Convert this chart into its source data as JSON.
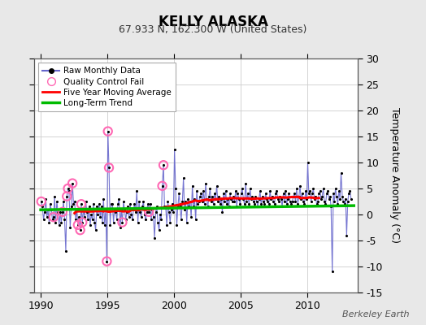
{
  "title": "KELLY ALASKA",
  "subtitle": "67.933 N, 162.300 W (United States)",
  "ylabel_right": "Temperature Anomaly (°C)",
  "attribution": "Berkeley Earth",
  "xlim": [
    1989.5,
    2013.8
  ],
  "ylim": [
    -15,
    30
  ],
  "yticks": [
    -15,
    -10,
    -5,
    0,
    5,
    10,
    15,
    20,
    25,
    30
  ],
  "xticks": [
    1990,
    1995,
    2000,
    2005,
    2010
  ],
  "bg_color": "#e8e8e8",
  "plot_bg_color": "#ffffff",
  "raw_color": "#6666cc",
  "raw_dot_color": "#000000",
  "qc_color": "#ff69b4",
  "ma_color": "#ff0000",
  "trend_color": "#00bb00",
  "grid_color": "#cccccc",
  "raw_data_times": [
    1990.04,
    1990.12,
    1990.21,
    1990.29,
    1990.38,
    1990.46,
    1990.54,
    1990.63,
    1990.71,
    1990.79,
    1990.88,
    1990.96,
    1991.04,
    1991.12,
    1991.21,
    1991.29,
    1991.38,
    1991.46,
    1991.54,
    1991.63,
    1991.71,
    1991.79,
    1991.88,
    1991.96,
    1992.04,
    1992.12,
    1992.21,
    1992.29,
    1992.38,
    1992.46,
    1992.54,
    1992.63,
    1992.71,
    1992.79,
    1992.88,
    1992.96,
    1993.04,
    1993.12,
    1993.21,
    1993.29,
    1993.38,
    1993.46,
    1993.54,
    1993.63,
    1993.71,
    1993.79,
    1993.88,
    1993.96,
    1994.04,
    1994.12,
    1994.21,
    1994.29,
    1994.38,
    1994.46,
    1994.54,
    1994.63,
    1994.71,
    1994.79,
    1994.88,
    1994.96,
    1995.04,
    1995.12,
    1995.21,
    1995.29,
    1995.38,
    1995.46,
    1995.54,
    1995.63,
    1995.71,
    1995.79,
    1995.88,
    1995.96,
    1996.04,
    1996.12,
    1996.21,
    1996.29,
    1996.38,
    1996.46,
    1996.54,
    1996.63,
    1996.71,
    1996.79,
    1996.88,
    1996.96,
    1997.04,
    1997.12,
    1997.21,
    1997.29,
    1997.38,
    1997.46,
    1997.54,
    1997.63,
    1997.71,
    1997.79,
    1997.88,
    1997.96,
    1998.04,
    1998.12,
    1998.21,
    1998.29,
    1998.38,
    1998.46,
    1998.54,
    1998.63,
    1998.71,
    1998.79,
    1998.88,
    1998.96,
    1999.04,
    1999.12,
    1999.21,
    1999.29,
    1999.38,
    1999.46,
    1999.54,
    1999.63,
    1999.71,
    1999.79,
    1999.88,
    1999.96,
    2000.04,
    2000.12,
    2000.21,
    2000.29,
    2000.38,
    2000.46,
    2000.54,
    2000.63,
    2000.71,
    2000.79,
    2000.88,
    2000.96,
    2001.04,
    2001.12,
    2001.21,
    2001.29,
    2001.38,
    2001.46,
    2001.54,
    2001.63,
    2001.71,
    2001.79,
    2001.88,
    2001.96,
    2002.04,
    2002.12,
    2002.21,
    2002.29,
    2002.38,
    2002.46,
    2002.54,
    2002.63,
    2002.71,
    2002.79,
    2002.88,
    2002.96,
    2003.04,
    2003.12,
    2003.21,
    2003.29,
    2003.38,
    2003.46,
    2003.54,
    2003.63,
    2003.71,
    2003.79,
    2003.88,
    2003.96,
    2004.04,
    2004.12,
    2004.21,
    2004.29,
    2004.38,
    2004.46,
    2004.54,
    2004.63,
    2004.71,
    2004.79,
    2004.88,
    2004.96,
    2005.04,
    2005.12,
    2005.21,
    2005.29,
    2005.38,
    2005.46,
    2005.54,
    2005.63,
    2005.71,
    2005.79,
    2005.88,
    2005.96,
    2006.04,
    2006.12,
    2006.21,
    2006.29,
    2006.38,
    2006.46,
    2006.54,
    2006.63,
    2006.71,
    2006.79,
    2006.88,
    2006.96,
    2007.04,
    2007.12,
    2007.21,
    2007.29,
    2007.38,
    2007.46,
    2007.54,
    2007.63,
    2007.71,
    2007.79,
    2007.88,
    2007.96,
    2008.04,
    2008.12,
    2008.21,
    2008.29,
    2008.38,
    2008.46,
    2008.54,
    2008.63,
    2008.71,
    2008.79,
    2008.88,
    2008.96,
    2009.04,
    2009.12,
    2009.21,
    2009.29,
    2009.38,
    2009.46,
    2009.54,
    2009.63,
    2009.71,
    2009.79,
    2009.88,
    2009.96,
    2010.04,
    2010.12,
    2010.21,
    2010.29,
    2010.38,
    2010.46,
    2010.54,
    2010.63,
    2010.71,
    2010.79,
    2010.88,
    2010.96,
    2011.04,
    2011.12,
    2011.21,
    2011.29,
    2011.38,
    2011.46,
    2011.54,
    2011.63,
    2011.71,
    2011.79,
    2011.88,
    2011.96,
    2012.04,
    2012.12,
    2012.21,
    2012.29,
    2012.38,
    2012.46,
    2012.54,
    2012.63,
    2012.71,
    2012.79,
    2012.88,
    2012.96,
    2013.04,
    2013.12,
    2013.21,
    2013.29
  ],
  "raw_data_values": [
    2.5,
    1.5,
    -1.0,
    0.5,
    3.0,
    -0.5,
    1.0,
    -1.5,
    2.0,
    1.0,
    -1.0,
    -0.5,
    3.5,
    -1.5,
    2.5,
    0.5,
    -2.0,
    0.5,
    -1.5,
    0.5,
    2.5,
    -1.0,
    -7.0,
    3.5,
    5.0,
    4.5,
    -2.5,
    1.5,
    6.0,
    2.0,
    2.5,
    -1.0,
    1.0,
    -2.0,
    -0.5,
    -3.0,
    2.0,
    -1.5,
    1.0,
    -0.5,
    2.5,
    0.5,
    -1.0,
    1.5,
    -2.0,
    0.0,
    -1.0,
    2.0,
    -1.5,
    -3.0,
    1.5,
    0.0,
    2.0,
    -0.5,
    1.5,
    -1.5,
    3.0,
    -2.0,
    1.0,
    -9.0,
    16.0,
    9.0,
    -2.0,
    2.0,
    2.0,
    -1.5,
    1.0,
    0.5,
    -1.0,
    2.0,
    3.0,
    -2.5,
    1.0,
    -1.5,
    2.5,
    1.0,
    -1.0,
    0.5,
    1.5,
    -0.5,
    2.0,
    0.0,
    -1.0,
    1.0,
    2.0,
    0.5,
    4.5,
    -1.5,
    2.5,
    0.5,
    -0.5,
    1.5,
    2.5,
    0.0,
    -1.0,
    0.5,
    2.0,
    0.5,
    2.0,
    -1.0,
    1.0,
    -0.5,
    -4.5,
    0.5,
    1.5,
    -1.5,
    -3.0,
    0.0,
    -1.0,
    5.5,
    9.5,
    1.5,
    1.5,
    -2.0,
    2.5,
    0.5,
    -1.5,
    1.0,
    2.0,
    0.5,
    12.5,
    5.0,
    -2.0,
    1.5,
    4.0,
    1.5,
    -1.0,
    2.5,
    7.0,
    1.0,
    2.5,
    -1.5,
    3.0,
    1.5,
    2.5,
    -0.5,
    5.5,
    1.5,
    3.0,
    -1.0,
    4.5,
    2.0,
    2.5,
    3.5,
    4.0,
    2.5,
    4.5,
    2.0,
    6.0,
    3.0,
    1.5,
    3.5,
    5.0,
    2.5,
    3.5,
    2.0,
    4.0,
    3.0,
    5.5,
    2.5,
    3.5,
    2.0,
    3.0,
    0.5,
    4.0,
    2.5,
    4.5,
    2.0,
    3.0,
    1.5,
    4.0,
    3.0,
    2.5,
    3.5,
    2.5,
    4.5,
    1.5,
    4.0,
    3.0,
    2.0,
    4.0,
    5.0,
    3.0,
    2.0,
    6.0,
    2.5,
    4.0,
    2.0,
    5.0,
    3.0,
    3.5,
    2.5,
    2.0,
    3.5,
    2.5,
    1.5,
    3.0,
    4.5,
    2.0,
    3.5,
    2.5,
    2.0,
    4.0,
    3.0,
    2.5,
    2.0,
    4.5,
    3.0,
    3.5,
    2.5,
    2.0,
    4.0,
    4.5,
    3.0,
    2.5,
    3.5,
    3.0,
    1.5,
    4.0,
    2.5,
    4.5,
    2.0,
    3.0,
    4.0,
    2.5,
    2.0,
    2.5,
    3.5,
    4.0,
    2.5,
    5.0,
    2.0,
    3.5,
    5.5,
    3.0,
    4.0,
    2.5,
    2.0,
    4.5,
    3.0,
    10.0,
    4.0,
    4.5,
    2.5,
    4.0,
    5.0,
    3.0,
    3.5,
    2.0,
    2.5,
    4.0,
    4.5,
    3.0,
    3.5,
    5.0,
    2.5,
    2.0,
    4.0,
    4.5,
    3.0,
    3.5,
    1.5,
    -11.0,
    4.0,
    2.5,
    5.0,
    3.5,
    2.0,
    4.5,
    3.0,
    8.0,
    3.5,
    2.5,
    2.0,
    3.0,
    -4.0,
    2.5,
    4.0,
    4.5,
    3.0
  ],
  "qc_times": [
    1990.04,
    1990.96,
    1991.63,
    1991.96,
    1992.04,
    1992.38,
    1992.79,
    1992.96,
    1993.04,
    1993.12,
    1994.96,
    1995.04,
    1995.12,
    1996.12,
    1998.12,
    1999.12,
    1999.21
  ],
  "qc_values": [
    2.5,
    -0.5,
    0.5,
    3.5,
    5.0,
    6.0,
    -2.0,
    -3.0,
    2.0,
    -1.5,
    -9.0,
    16.0,
    9.0,
    -1.5,
    0.5,
    5.5,
    9.5
  ],
  "trend_x": [
    1990.0,
    2013.5
  ],
  "trend_y": [
    0.9,
    1.7
  ]
}
